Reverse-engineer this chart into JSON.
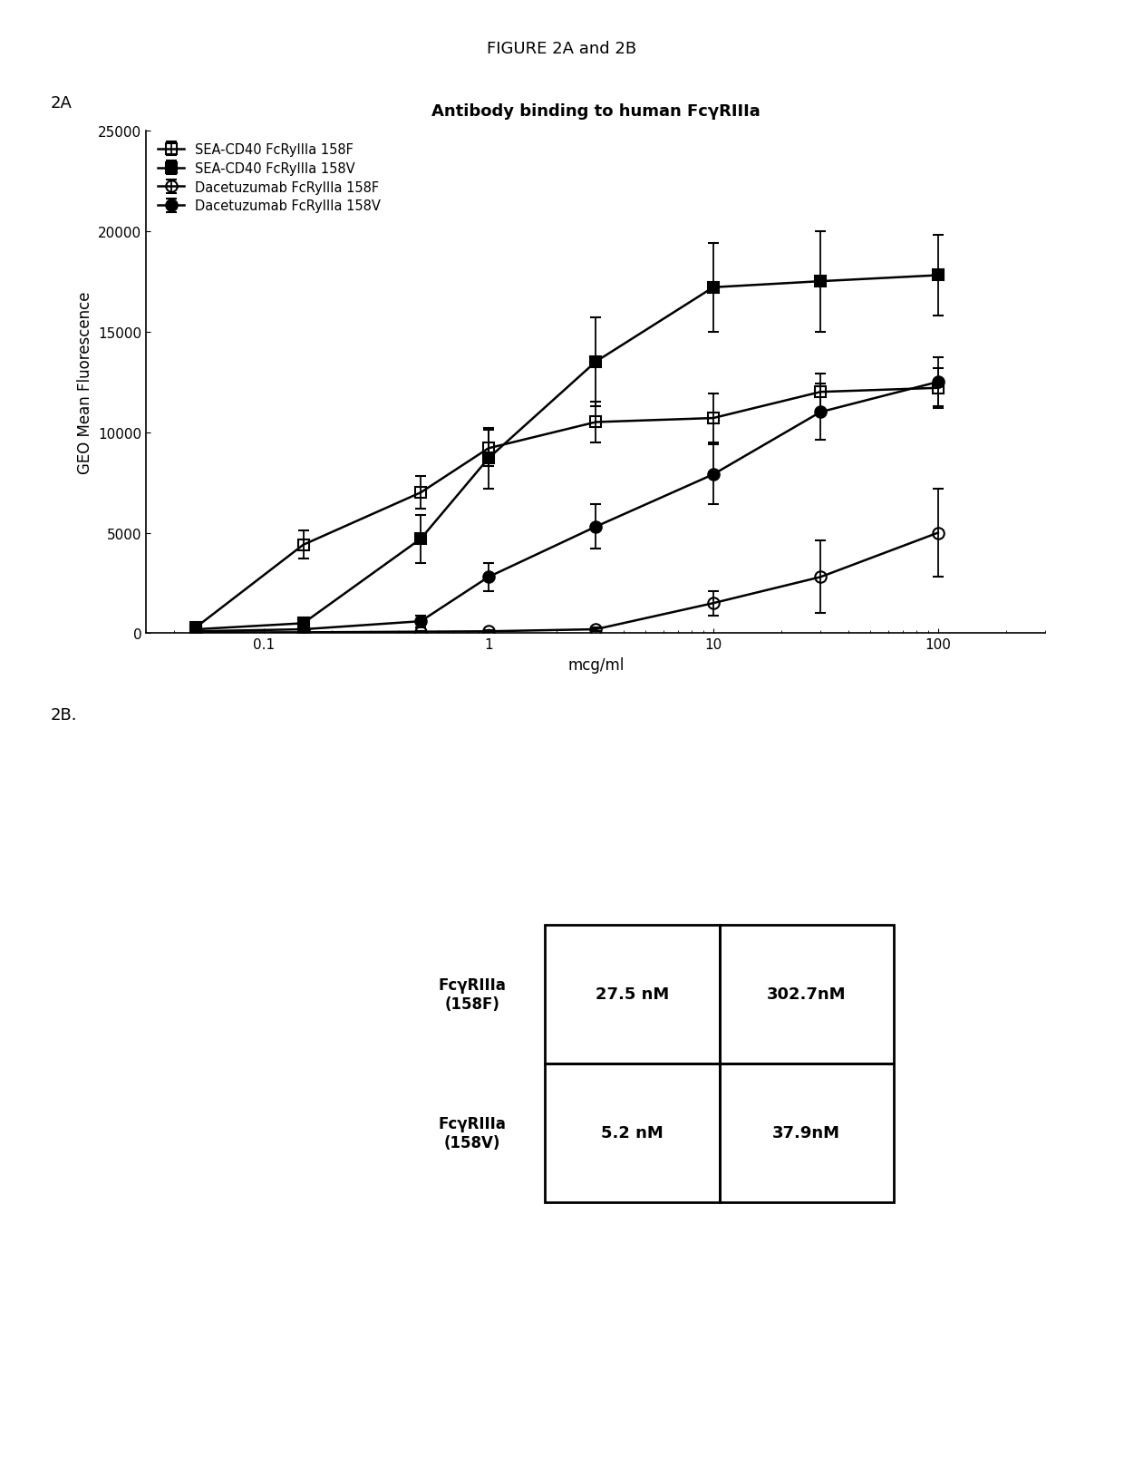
{
  "figure_title": "FIGURE 2A and 2B",
  "panel_2a_label": "2A",
  "panel_2b_label": "2B.",
  "chart_title": "Antibody binding to human FcγRIIIa",
  "xlabel": "mcg/ml",
  "ylabel": "GEO Mean Fluorescence",
  "ylim": [
    0,
    25000
  ],
  "yticks": [
    0,
    5000,
    10000,
    15000,
    20000,
    25000
  ],
  "xlim_log": [
    0.03,
    300
  ],
  "series": [
    {
      "label": "SEA-CD40 FcRyIIIa 158F",
      "marker": "s",
      "fillstyle": "none",
      "color": "#000000",
      "x": [
        0.05,
        0.15,
        0.5,
        1.0,
        3.0,
        10.0,
        30.0,
        100.0
      ],
      "y": [
        300,
        4400,
        7000,
        9200,
        10500,
        10700,
        12000,
        12200
      ],
      "yerr": [
        150,
        700,
        800,
        900,
        1000,
        1200,
        900,
        1000
      ]
    },
    {
      "label": "SEA-CD40 FcRyIIIa 158V",
      "marker": "s",
      "fillstyle": "full",
      "color": "#000000",
      "x": [
        0.05,
        0.15,
        0.5,
        1.0,
        3.0,
        10.0,
        30.0,
        100.0
      ],
      "y": [
        200,
        500,
        4700,
        8700,
        13500,
        17200,
        17500,
        17800
      ],
      "yerr": [
        100,
        200,
        1200,
        1500,
        2200,
        2200,
        2500,
        2000
      ]
    },
    {
      "label": "Dacetuzumab FcRyIIIa 158F",
      "marker": "o",
      "fillstyle": "none",
      "color": "#000000",
      "x": [
        0.05,
        0.15,
        0.5,
        1.0,
        3.0,
        10.0,
        30.0,
        100.0
      ],
      "y": [
        50,
        50,
        80,
        100,
        200,
        1500,
        2800,
        5000
      ],
      "yerr": [
        30,
        30,
        30,
        50,
        80,
        600,
        1800,
        2200
      ]
    },
    {
      "label": "Dacetuzumab FcRyIIIa 158V",
      "marker": "o",
      "fillstyle": "full",
      "color": "#000000",
      "x": [
        0.05,
        0.15,
        0.5,
        1.0,
        3.0,
        10.0,
        30.0,
        100.0
      ],
      "y": [
        100,
        200,
        600,
        2800,
        5300,
        7900,
        11000,
        12500
      ],
      "yerr": [
        50,
        100,
        300,
        700,
        1100,
        1500,
        1400,
        1200
      ]
    }
  ],
  "table_2b": {
    "row_labels": [
      "FcγRIIIa\n(158F)",
      "FcγRIIIa\n(158V)"
    ],
    "col1": [
      "27.5 nM",
      "5.2 nM"
    ],
    "col2": [
      "302.7nM",
      "37.9nM"
    ]
  },
  "background_color": "#ffffff",
  "text_color": "#000000"
}
